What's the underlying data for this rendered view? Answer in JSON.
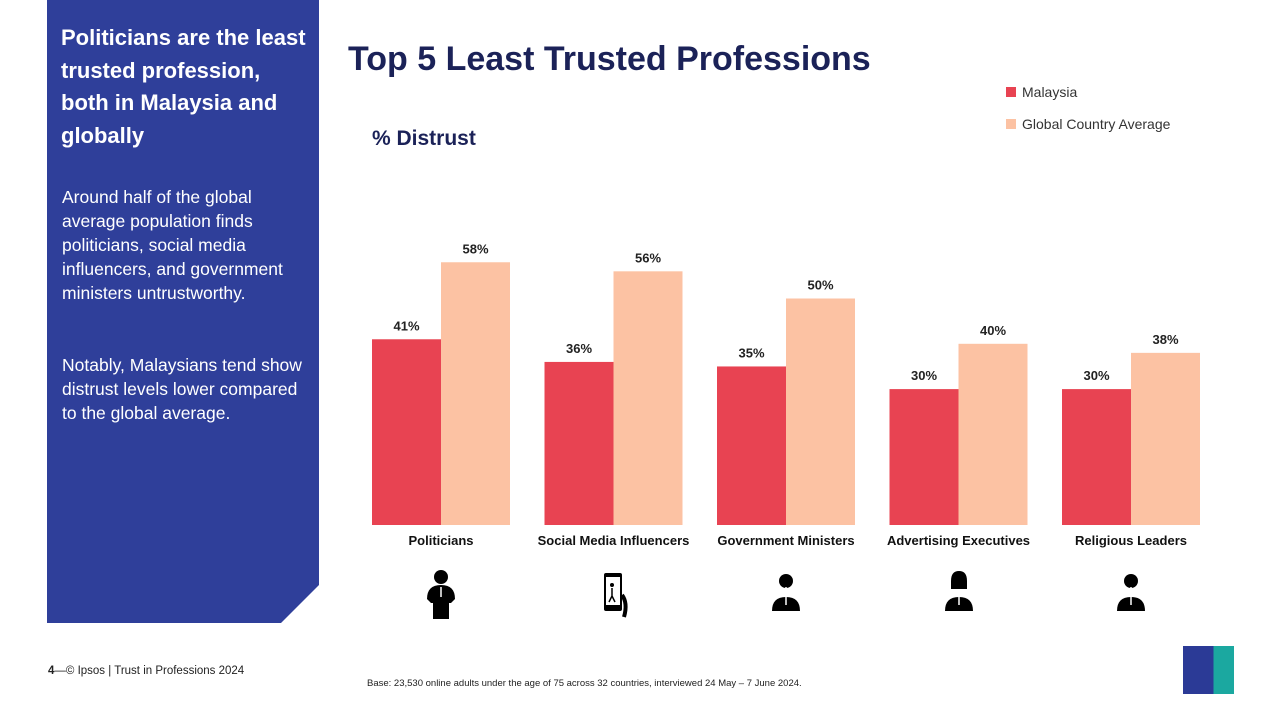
{
  "sidebar": {
    "headline": "Politicians are the least trusted profession, both in Malaysia and globally",
    "para1": "Around half of the global average population finds politicians, social media influencers, and government ministers untrustworthy.",
    "para2": "Notably, Malaysians tend show distrust levels lower compared to the global average."
  },
  "footer": {
    "page": "4",
    "source": "© Ipsos | Trust in Professions 2024",
    "base": "Base: 23,530 online adults under the age of 75 across 32 countries, interviewed 24 May – 7 June 2024.",
    "logo": "Ipsos"
  },
  "chart_data": {
    "type": "bar",
    "title": "Top 5 Least Trusted Professions",
    "ylabel": "% Distrust",
    "categories": [
      "Politicians",
      "Social Media Influencers",
      "Government Ministers",
      "Advertising Executives",
      "Religious Leaders"
    ],
    "series": [
      {
        "name": "Malaysia",
        "color": "#e84352",
        "values": [
          41,
          36,
          35,
          30,
          30
        ]
      },
      {
        "name": "Global Country Average",
        "color": "#fcc2a3",
        "values": [
          58,
          56,
          50,
          40,
          38
        ]
      }
    ],
    "value_suffix": "%",
    "legend": "top-right",
    "grid": false
  },
  "icons": [
    "politician-at-podium-icon",
    "phone-influencer-icon",
    "male-minister-icon",
    "female-executive-icon",
    "religious-leader-icon"
  ]
}
